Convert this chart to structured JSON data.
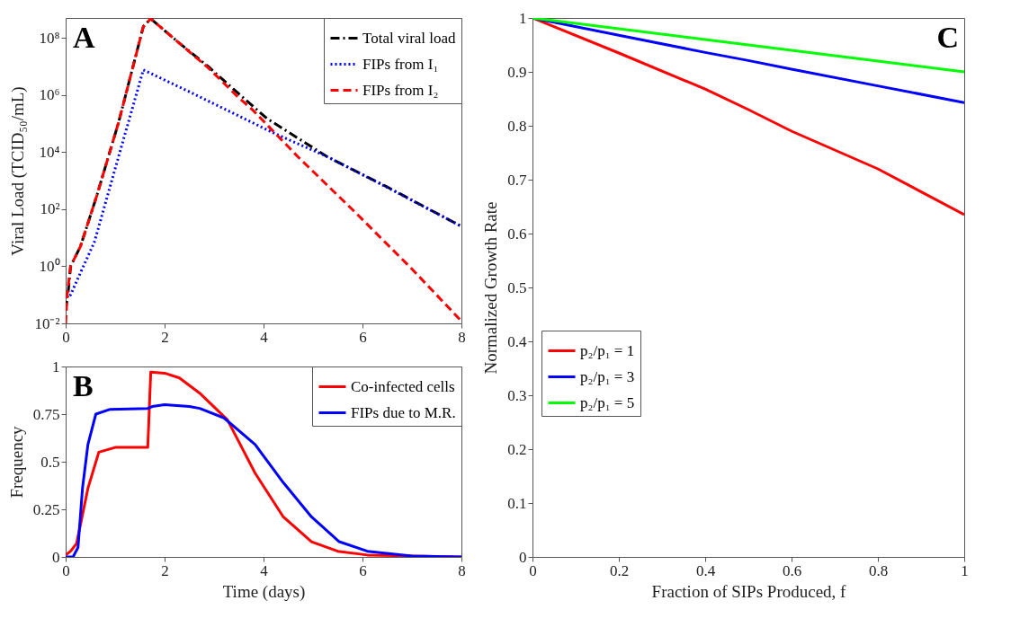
{
  "chart_data": [
    {
      "type": "line",
      "annotations": [
        "A"
      ],
      "ylabel": "Viral Load (TCID₅₀/mL)",
      "log": "y",
      "legend": "top right",
      "xlim": [
        0,
        8
      ],
      "xticks": [
        0,
        2,
        4,
        6,
        8
      ],
      "ylim": [
        0.01,
        500000000.0
      ],
      "yticks": [
        {
          "value": 0.01,
          "label": "10⁻²"
        },
        {
          "value": 1,
          "label": "10⁰"
        },
        {
          "value": 100,
          "label": "10²"
        },
        {
          "value": 10000,
          "label": "10⁴"
        },
        {
          "value": 1000000,
          "label": "10⁶"
        },
        {
          "value": 100000000,
          "label": "10⁸"
        }
      ],
      "series": [
        {
          "name": "Total viral load",
          "color": "#000000",
          "line_style": "dashdot",
          "x": [
            0,
            0.05,
            0.1,
            0.3,
            0.63,
            1.07,
            1.57,
            1.72,
            2.3,
            2.88,
            3.5,
            4.07,
            5.28,
            6.5,
            8
          ],
          "values": [
            0.03,
            0.12,
            1,
            5,
            300,
            110000,
            250000000,
            470000000,
            65000000,
            10000000,
            1100000,
            150000,
            7000,
            600,
            25
          ]
        },
        {
          "name": "FIPs from I₁",
          "color": "#0000ff",
          "line_style": "dotted",
          "x": [
            0,
            0.1,
            0.3,
            0.58,
            1.07,
            1.57,
            2.5,
            4.2,
            5.28,
            6.5,
            8
          ],
          "values": [
            0.08,
            0.1,
            0.6,
            7,
            7000,
            7600000,
            1300000,
            47000,
            7000,
            580,
            25
          ]
        },
        {
          "name": "FIPs from I₂",
          "color": "#ff0000",
          "line_style": "dashed",
          "x": [
            0,
            0.03,
            0.1,
            0.3,
            0.63,
            1.07,
            1.57,
            1.72,
            2.3,
            2.88,
            3.5,
            3.78,
            4.69,
            5.88,
            7,
            8
          ],
          "values": [
            0.01,
            0.1,
            1,
            5,
            300,
            110000,
            250000000,
            470000000,
            65000000,
            9000000,
            800000,
            300000,
            7000,
            70,
            0.8,
            0.012
          ]
        }
      ]
    },
    {
      "type": "line",
      "annotations": [
        "B"
      ],
      "xlabel": "Time (days)",
      "ylabel": "Frequency",
      "legend": "top right",
      "xlim": [
        0,
        8
      ],
      "xticks": [
        0,
        2,
        4,
        6,
        8
      ],
      "ylim": [
        0,
        1
      ],
      "yticks": [
        0,
        0.25,
        0.5,
        0.75,
        1
      ],
      "series": [
        {
          "name": "Co-infected cells",
          "color": "#ff0000",
          "x": [
            0,
            0.1,
            0.22,
            0.45,
            0.67,
            1,
            1.66,
            1.72,
            2,
            2.3,
            2.71,
            3.27,
            3.83,
            4.4,
            4.97,
            5.5,
            6.1,
            8
          ],
          "values": [
            0.01,
            0.03,
            0.07,
            0.36,
            0.55,
            0.575,
            0.575,
            0.97,
            0.965,
            0.94,
            0.86,
            0.72,
            0.44,
            0.21,
            0.08,
            0.03,
            0.01,
            0
          ]
        },
        {
          "name": "FIPs due to M.R.",
          "color": "#0000ff",
          "x": [
            0,
            0.15,
            0.25,
            0.34,
            0.45,
            0.61,
            0.9,
            1.66,
            1.75,
            2,
            2.5,
            2.71,
            3.2,
            3.83,
            4.4,
            4.97,
            5.53,
            6.1,
            7,
            8
          ],
          "values": [
            0,
            0,
            0.05,
            0.36,
            0.59,
            0.75,
            0.775,
            0.78,
            0.79,
            0.8,
            0.79,
            0.78,
            0.73,
            0.59,
            0.39,
            0.21,
            0.08,
            0.03,
            0.005,
            0
          ]
        }
      ]
    },
    {
      "type": "line",
      "annotations": [
        "C"
      ],
      "xlabel": "Fraction of SIPs Produced, f",
      "ylabel": "Normalized Growth Rate",
      "legend": "left",
      "xlim": [
        0,
        1
      ],
      "xticks": [
        0,
        0.2,
        0.4,
        0.6,
        0.8,
        1
      ],
      "ylim": [
        0,
        1
      ],
      "yticks": [
        0,
        0.1,
        0.2,
        0.3,
        0.4,
        0.5,
        0.6,
        0.7,
        0.8,
        0.9,
        1
      ],
      "x": [
        0,
        0.2,
        0.4,
        0.5,
        0.6,
        0.8,
        1
      ],
      "series": [
        {
          "name": "p₂/p₁ = 1",
          "color": "#ff0000",
          "values": [
            1,
            0.935,
            0.868,
            0.83,
            0.79,
            0.72,
            0.635
          ]
        },
        {
          "name": "p₂/p₁ = 3",
          "color": "#0000ff",
          "values": [
            1,
            0.968,
            0.936,
            0.921,
            0.905,
            0.874,
            0.843
          ]
        },
        {
          "name": "p₂/p₁ = 5",
          "color": "#00ff00",
          "values": [
            1,
            0.98,
            0.96,
            0.95,
            0.94,
            0.92,
            0.9
          ]
        }
      ]
    }
  ]
}
